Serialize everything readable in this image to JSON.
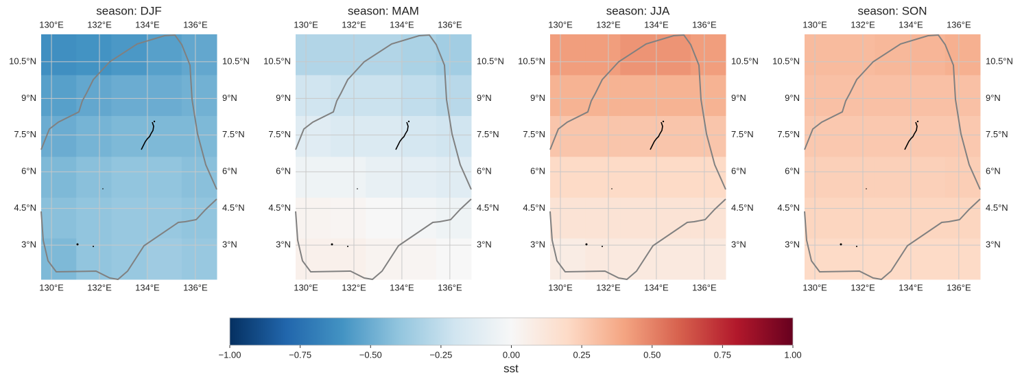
{
  "chart_data": {
    "type": "heatmap",
    "xlim": [
      129.57,
      136.89
    ],
    "ylim": [
      1.6,
      11.62
    ],
    "xticks": [
      {
        "value": 130,
        "label": "130°E"
      },
      {
        "value": 132,
        "label": "132°E"
      },
      {
        "value": 134,
        "label": "134°E"
      },
      {
        "value": 136,
        "label": "136°E"
      }
    ],
    "yticks": [
      {
        "value": 3,
        "label": "3°N"
      },
      {
        "value": 4.5,
        "label": "4.5°N"
      },
      {
        "value": 6,
        "label": "6°N"
      },
      {
        "value": 7.5,
        "label": "7.5°N"
      },
      {
        "value": 9,
        "label": "9°N"
      },
      {
        "value": 10.5,
        "label": "10.5°N"
      }
    ],
    "grid": true,
    "panels": [
      {
        "title": "season: DJF",
        "values": [
          [
            -0.62,
            -0.6,
            -0.58,
            -0.55,
            -0.52
          ],
          [
            -0.55,
            -0.52,
            -0.5,
            -0.5,
            -0.48
          ],
          [
            -0.5,
            -0.47,
            -0.45,
            -0.45,
            -0.45
          ],
          [
            -0.45,
            -0.42,
            -0.4,
            -0.4,
            -0.42
          ],
          [
            -0.42,
            -0.4,
            -0.38,
            -0.38,
            -0.4
          ],
          [
            -0.45,
            -0.4,
            -0.38,
            -0.36,
            -0.38
          ]
        ]
      },
      {
        "title": "season: MAM",
        "values": [
          [
            -0.3,
            -0.3,
            -0.3,
            -0.32,
            -0.35
          ],
          [
            -0.2,
            -0.22,
            -0.22,
            -0.25,
            -0.28
          ],
          [
            -0.12,
            -0.15,
            -0.15,
            -0.18,
            -0.2
          ],
          [
            -0.05,
            -0.05,
            -0.08,
            -0.1,
            -0.12
          ],
          [
            0.03,
            0.02,
            0,
            -0.02,
            -0.05
          ],
          [
            0.05,
            0.05,
            0.03,
            0.02,
            0
          ]
        ]
      },
      {
        "title": "season: JJA",
        "values": [
          [
            0.42,
            0.42,
            0.45,
            0.45,
            0.42
          ],
          [
            0.35,
            0.35,
            0.35,
            0.35,
            0.35
          ],
          [
            0.28,
            0.28,
            0.28,
            0.28,
            0.28
          ],
          [
            0.2,
            0.2,
            0.2,
            0.2,
            0.2
          ],
          [
            0.14,
            0.14,
            0.14,
            0.14,
            0.14
          ],
          [
            0.08,
            0.1,
            0.1,
            0.1,
            0.1
          ]
        ]
      },
      {
        "title": "season: SON",
        "values": [
          [
            0.32,
            0.32,
            0.33,
            0.34,
            0.36
          ],
          [
            0.3,
            0.3,
            0.3,
            0.3,
            0.3
          ],
          [
            0.27,
            0.27,
            0.27,
            0.27,
            0.27
          ],
          [
            0.24,
            0.24,
            0.24,
            0.24,
            0.25
          ],
          [
            0.22,
            0.22,
            0.22,
            0.22,
            0.22
          ],
          [
            0.2,
            0.2,
            0.2,
            0.2,
            0.2
          ]
        ]
      }
    ],
    "colorbar": {
      "label": "sst",
      "lim": [
        -1,
        1
      ],
      "ticks": [
        {
          "value": -1,
          "label": "−1.00"
        },
        {
          "value": -0.75,
          "label": "−0.75"
        },
        {
          "value": -0.5,
          "label": "−0.50"
        },
        {
          "value": -0.25,
          "label": "−0.25"
        },
        {
          "value": 0,
          "label": "0.00"
        },
        {
          "value": 0.25,
          "label": "0.25"
        },
        {
          "value": 0.5,
          "label": "0.50"
        },
        {
          "value": 0.75,
          "label": "0.75"
        },
        {
          "value": 1,
          "label": "1.00"
        }
      ],
      "colormap": [
        "#053061",
        "#2166ac",
        "#4393c3",
        "#92c5de",
        "#d1e5f0",
        "#f7f7f7",
        "#fddbc7",
        "#f4a582",
        "#d6604d",
        "#b2182b",
        "#67001f"
      ]
    }
  }
}
